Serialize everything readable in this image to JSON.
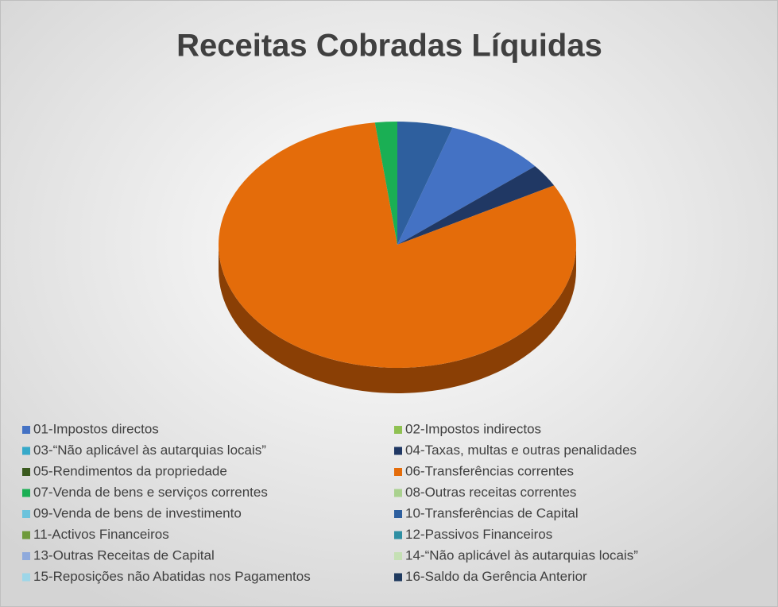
{
  "chart_data": {
    "type": "pie",
    "title": "Receitas Cobradas Líquidas",
    "categories": [
      "01-Impostos directos",
      "02-Impostos indirectos",
      "03-“Não aplicável às autarquias locais”",
      "04-Taxas, multas e outras penalidades",
      "05-Rendimentos da propriedade",
      "06-Transferências correntes",
      "07-Venda de bens e serviços correntes",
      "08-Outras receitas correntes",
      "09-Venda de bens de investimento",
      "10-Transferências de Capital",
      "11-Activos Financeiros",
      "12-Passivos Financeiros",
      "13-Outras Receitas de Capital",
      "14-“Não aplicável às autarquias locais”",
      "15-Reposições não Abatidas nos Pagamentos",
      "16-Saldo da Gerência Anterior"
    ],
    "values": [
      9,
      0,
      0,
      3,
      0,
      81,
      2,
      0,
      0,
      5,
      0,
      0,
      0,
      0,
      0,
      0
    ],
    "colors": [
      "#4472c4",
      "#8fc152",
      "#36a9c9",
      "#203864",
      "#3a5a1e",
      "#e46c0a",
      "#1aaf54",
      "#a9d18e",
      "#6cc3dc",
      "#2e5f9e",
      "#6e9a3a",
      "#2e8fa3",
      "#8faadc",
      "#c5e0b4",
      "#9dd6e8",
      "#1f3a5f"
    ],
    "legend": "bottom"
  }
}
